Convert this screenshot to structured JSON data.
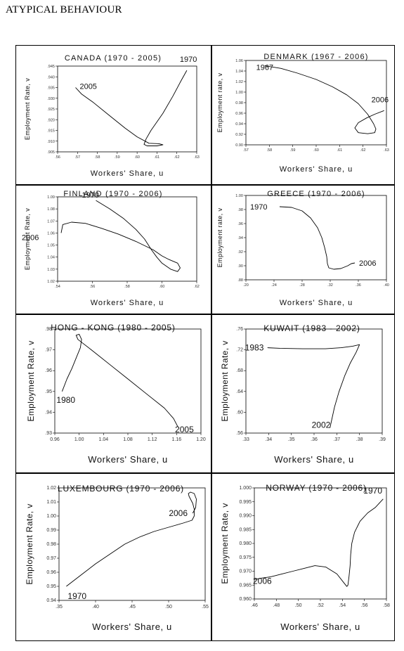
{
  "page_title": "ATYPICAL BEHAVIOUR",
  "chart_data": [
    {
      "type": "line",
      "title": "CANADA (1970 - 2005)",
      "xlabel": "Workers' Share, u",
      "ylabel": "Employment Rate, v",
      "xlim": [
        0.56,
        0.63
      ],
      "ylim": [
        0.905,
        0.945
      ],
      "xticks": [
        ".56",
        ".57",
        ".58",
        ".59",
        ".60",
        ".61",
        ".62",
        ".63"
      ],
      "yticks": [
        ".905",
        ".910",
        ".915",
        ".920",
        ".925",
        ".930",
        ".935",
        ".940",
        ".945"
      ],
      "start_label": "1970",
      "end_label": "2005",
      "series": [
        {
          "x": [
            0.625,
            0.622,
            0.618,
            0.613,
            0.607,
            0.6045,
            0.6035,
            0.605,
            0.61,
            0.613,
            0.611,
            0.606,
            0.6,
            0.594,
            0.586,
            0.578,
            0.572,
            0.569
          ],
          "y": [
            0.943,
            0.938,
            0.931,
            0.923,
            0.915,
            0.911,
            0.9085,
            0.9078,
            0.9078,
            0.9083,
            0.9088,
            0.909,
            0.912,
            0.916,
            0.922,
            0.928,
            0.932,
            0.935
          ]
        }
      ]
    },
    {
      "type": "line",
      "title": "DENMARK (1967 - 2006)",
      "xlabel": "Workers' Share, u",
      "ylabel": "Employment rate, v",
      "xlim": [
        0.57,
        0.63
      ],
      "ylim": [
        0.9,
        1.06
      ],
      "xticks": [
        ".57",
        ".58",
        ".59",
        ".60",
        ".61",
        ".62",
        ".63"
      ],
      "yticks": [
        "0.90",
        "0.92",
        "0.94",
        "0.96",
        "0.98",
        "1.00",
        "1.02",
        "1.04",
        "1.06"
      ],
      "start_label": "1967",
      "end_label": "2006",
      "series": [
        {
          "x": [
            0.578,
            0.585,
            0.592,
            0.6,
            0.607,
            0.613,
            0.618,
            0.622,
            0.6245,
            0.6255,
            0.625,
            0.622,
            0.618,
            0.6165,
            0.618,
            0.6215,
            0.625,
            0.629
          ],
          "y": [
            1.05,
            1.045,
            1.036,
            1.024,
            1.01,
            0.995,
            0.978,
            0.958,
            0.94,
            0.93,
            0.923,
            0.921,
            0.923,
            0.932,
            0.942,
            0.951,
            0.958,
            0.965
          ]
        }
      ]
    },
    {
      "type": "line",
      "title": "FINLAND (1970 - 2006)",
      "xlabel": "Workers' Share, u",
      "ylabel": "Employment Rate, v",
      "xlim": [
        0.54,
        0.62
      ],
      "ylim": [
        1.02,
        1.09
      ],
      "xticks": [
        ".54",
        ".56",
        ".58",
        ".60",
        ".62"
      ],
      "yticks": [
        "1.02",
        "1.03",
        "1.04",
        "1.05",
        "1.06",
        "1.07",
        "1.08",
        "1.09"
      ],
      "start_label": "1970",
      "end_label": "2006",
      "series": [
        {
          "x": [
            0.562,
            0.57,
            0.578,
            0.585,
            0.59,
            0.594,
            0.597,
            0.6,
            0.605,
            0.609,
            0.6105,
            0.609,
            0.604,
            0.6,
            0.595,
            0.585,
            0.575,
            0.565,
            0.556,
            0.548,
            0.543,
            0.542
          ],
          "y": [
            1.087,
            1.08,
            1.072,
            1.063,
            1.055,
            1.046,
            1.04,
            1.035,
            1.03,
            1.028,
            1.031,
            1.035,
            1.038,
            1.041,
            1.046,
            1.053,
            1.059,
            1.064,
            1.068,
            1.069,
            1.067,
            1.06
          ]
        }
      ]
    },
    {
      "type": "line",
      "title": "GREECE (1970 - 2006)",
      "xlabel": "Workers' Share, u",
      "ylabel": "Employment rate, v",
      "xlim": [
        0.2,
        0.4
      ],
      "ylim": [
        0.88,
        1.0
      ],
      "xticks": [
        ".20",
        ".24",
        ".28",
        ".32",
        ".36",
        ".40"
      ],
      "yticks": [
        ".88",
        ".90",
        ".92",
        ".94",
        ".96",
        ".98",
        "1.00"
      ],
      "start_label": "1970",
      "end_label": "2006",
      "series": [
        {
          "x": [
            0.248,
            0.265,
            0.28,
            0.292,
            0.302,
            0.308,
            0.312,
            0.315,
            0.316,
            0.318,
            0.325,
            0.335,
            0.345,
            0.35,
            0.355
          ],
          "y": [
            0.984,
            0.983,
            0.978,
            0.968,
            0.954,
            0.94,
            0.926,
            0.913,
            0.903,
            0.897,
            0.895,
            0.896,
            0.9,
            0.903,
            0.904
          ]
        }
      ]
    },
    {
      "type": "line",
      "title": "HONG - KONG (1980 - 2005)",
      "xlabel": "Workers' Share, u",
      "ylabel": "Employment Rate, v",
      "xlim": [
        0.96,
        1.2
      ],
      "ylim": [
        0.93,
        0.98
      ],
      "xticks": [
        "0.96",
        "1.00",
        "1.04",
        "1.08",
        "1.12",
        "1.16",
        "1.20"
      ],
      "yticks": [
        ".93",
        ".94",
        ".95",
        ".96",
        ".97",
        ".98"
      ],
      "start_label": "1980",
      "end_label": "2005",
      "series": [
        {
          "x": [
            0.972,
            0.98,
            0.988,
            0.995,
            1.002,
            1.004,
            1.0,
            0.995,
            0.998,
            1.02,
            1.05,
            1.08,
            1.11,
            1.14,
            1.155,
            1.162
          ],
          "y": [
            0.95,
            0.956,
            0.961,
            0.966,
            0.971,
            0.975,
            0.9775,
            0.977,
            0.975,
            0.97,
            0.963,
            0.956,
            0.949,
            0.942,
            0.937,
            0.933
          ]
        }
      ]
    },
    {
      "type": "line",
      "title": "KUWAIT (1983 - 2002)",
      "xlabel": "Workers' Share, u",
      "ylabel": "Employment Rate, v",
      "xlim": [
        0.33,
        0.39
      ],
      "ylim": [
        0.56,
        0.76
      ],
      "xticks": [
        ".33",
        ".34",
        ".35",
        ".36",
        ".37",
        ".38",
        ".39"
      ],
      "yticks": [
        ".56",
        ".60",
        ".64",
        ".68",
        ".72",
        ".76"
      ],
      "start_label": "1983",
      "end_label": "2002",
      "series": [
        {
          "x": [
            0.3395,
            0.345,
            0.355,
            0.365,
            0.372,
            0.377,
            0.38,
            0.3785,
            0.376,
            0.3735,
            0.371,
            0.369,
            0.367
          ],
          "y": [
            0.724,
            0.723,
            0.722,
            0.722,
            0.724,
            0.727,
            0.73,
            0.715,
            0.695,
            0.67,
            0.64,
            0.61,
            0.57
          ]
        }
      ]
    },
    {
      "type": "line",
      "title": "LUXEMBOURG (1970 - 2006)",
      "xlabel": "Workers' Share, u",
      "ylabel": "Employment Rate, v",
      "xlim": [
        0.35,
        0.55
      ],
      "ylim": [
        0.94,
        1.02
      ],
      "xticks": [
        ".35",
        ".40",
        ".45",
        ".50",
        ".55"
      ],
      "yticks": [
        "0.94",
        "0.95",
        "0.96",
        "0.97",
        "0.98",
        "0.99",
        "1.00",
        "1.01",
        "1.02"
      ],
      "start_label": "1970",
      "end_label": "2006",
      "series": [
        {
          "x": [
            0.36,
            0.38,
            0.4,
            0.42,
            0.44,
            0.46,
            0.48,
            0.5,
            0.52,
            0.532,
            0.535,
            0.535,
            0.533,
            0.53,
            0.528,
            0.527,
            0.53,
            0.535,
            0.538,
            0.537,
            0.533
          ],
          "y": [
            0.95,
            0.958,
            0.966,
            0.973,
            0.98,
            0.985,
            0.989,
            0.992,
            0.995,
            0.997,
            1.0,
            1.005,
            1.009,
            1.012,
            1.014,
            1.016,
            1.017,
            1.016,
            1.012,
            1.006,
            1.002
          ]
        }
      ]
    },
    {
      "type": "line",
      "title": "NORWAY (1970 - 2006)",
      "xlabel": "Workers' Share, u",
      "ylabel": "Employment Rate, v",
      "xlim": [
        0.46,
        0.58
      ],
      "ylim": [
        0.96,
        1.0
      ],
      "xticks": [
        ".46",
        ".48",
        ".50",
        ".52",
        ".54",
        ".56",
        ".58"
      ],
      "yticks": [
        "0.960",
        "0.965",
        "0.970",
        "0.975",
        "0.980",
        "0.985",
        "0.990",
        "0.995",
        "1.000"
      ],
      "start_label": "1970",
      "end_label": "2006",
      "series": [
        {
          "x": [
            0.577,
            0.57,
            0.563,
            0.556,
            0.551,
            0.5485,
            0.5475,
            0.547,
            0.546,
            0.545,
            0.544,
            0.541,
            0.535,
            0.525,
            0.515,
            0.505,
            0.495,
            0.485,
            0.475,
            0.466,
            0.46
          ],
          "y": [
            0.996,
            0.993,
            0.991,
            0.988,
            0.984,
            0.98,
            0.976,
            0.972,
            0.968,
            0.965,
            0.9645,
            0.966,
            0.969,
            0.9715,
            0.972,
            0.971,
            0.97,
            0.969,
            0.968,
            0.9675,
            0.967
          ]
        }
      ]
    }
  ]
}
